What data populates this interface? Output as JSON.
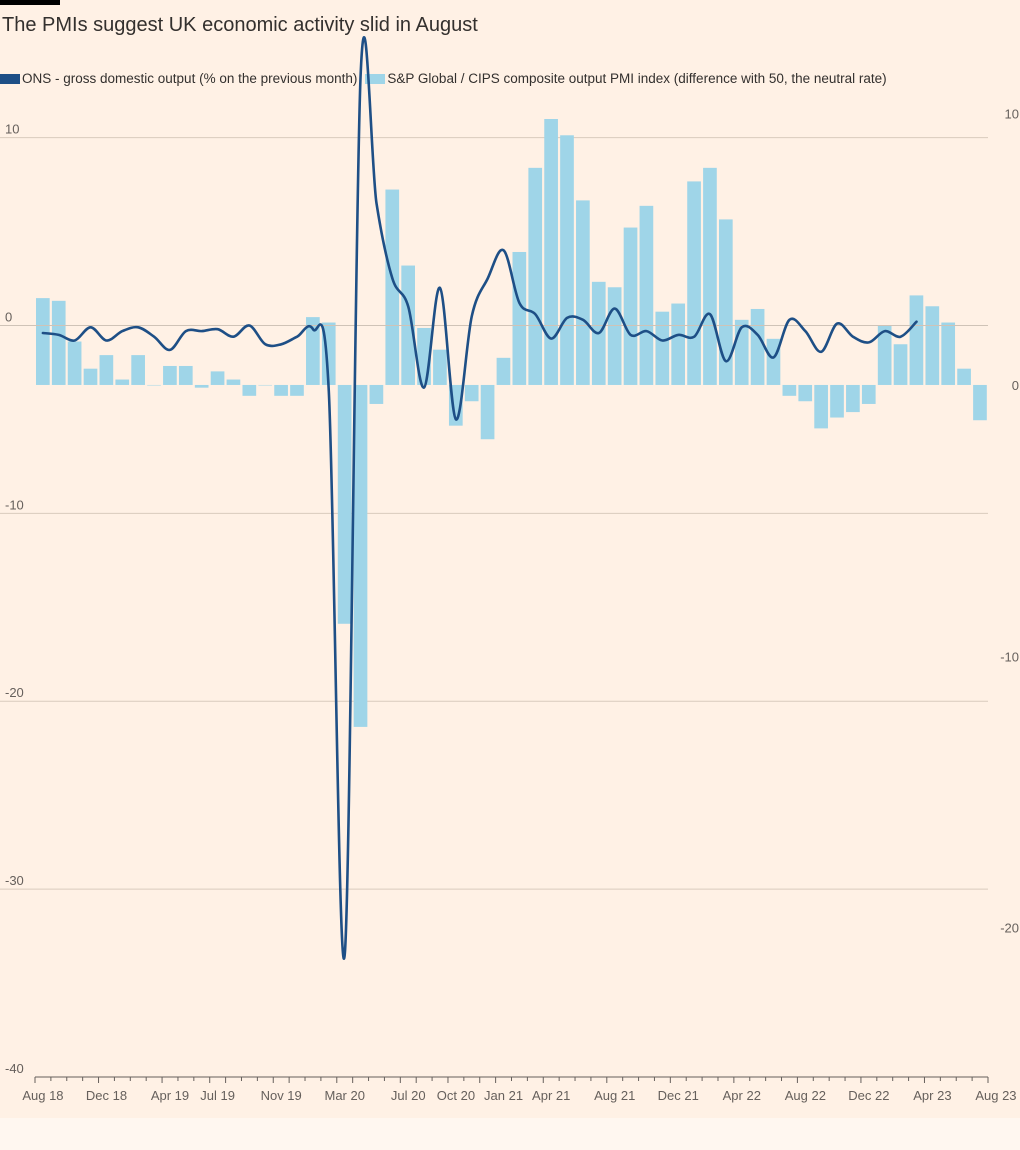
{
  "title": "The PMIs suggest UK economic activity slid in August",
  "legend": [
    {
      "label": "ONS - gross domestic output (% on the previous month)",
      "color": "#1E4F86"
    },
    {
      "label": "S&P Global / CIPS composite output PMI index (difference with 50, the neutral rate)",
      "color": "#9FD5E8"
    }
  ],
  "chart_data": {
    "type": "bar+line",
    "x_tick_labels": [
      "Aug 18",
      "Dec 18",
      "Apr 19",
      "Jul 19",
      "Nov 19",
      "Mar 20",
      "Jul 20",
      "Oct 20",
      "Jan 21",
      "Apr 21",
      "Aug 21",
      "Dec 21",
      "Apr 22",
      "Aug 22",
      "Dec 22",
      "Apr 23",
      "Aug 23"
    ],
    "x_tick_label_months": [
      0,
      4,
      8,
      11,
      15,
      19,
      23,
      26,
      29,
      32,
      36,
      40,
      44,
      48,
      52,
      56,
      60
    ],
    "left_axis": {
      "ticks": [
        10,
        0,
        -10,
        -20,
        -30,
        -40
      ],
      "range": [
        -40,
        12
      ]
    },
    "right_axis": {
      "ticks": [
        10,
        0,
        -10,
        -20
      ],
      "range": [
        -25.5,
        10.5
      ]
    },
    "grid": true,
    "series": [
      {
        "name": "ONS - gross domestic output (% on the previous month)",
        "axis": "left",
        "type": "line",
        "start_month": 0,
        "values": [
          -0.4,
          -0.5,
          -0.8,
          -0.1,
          -0.8,
          -0.3,
          -0.1,
          -0.6,
          -1.3,
          -0.3,
          -0.3,
          -0.2,
          -0.6,
          0.0,
          -1.0,
          -1.0,
          -0.6,
          -0.2,
          -3.5,
          -33.5,
          13.3,
          6.5,
          2.5,
          1.0,
          -3.3,
          2.0,
          -5.0,
          0.5,
          2.5,
          4.0,
          1.2,
          0.6,
          -0.7,
          0.4,
          0.3,
          -0.4,
          0.9,
          -0.5,
          -0.3,
          -0.8,
          -0.5,
          -0.6,
          0.6,
          -1.9,
          -0.1,
          -0.5,
          -1.7,
          0.3,
          -0.3,
          -1.4,
          0.1,
          -0.6,
          -0.9,
          -0.3,
          -0.6,
          0.2
        ]
      },
      {
        "name": "S&P Global / CIPS composite output PMI index (difference with 50, the neutral rate)",
        "axis": "right",
        "type": "bar",
        "start_month": 0,
        "values": [
          3.2,
          3.1,
          1.6,
          0.6,
          1.1,
          0.2,
          1.1,
          0.0,
          0.7,
          0.7,
          -0.1,
          0.5,
          0.2,
          -0.4,
          0.0,
          -0.4,
          -0.4,
          2.5,
          2.3,
          -8.8,
          -12.6,
          -0.7,
          7.2,
          4.4,
          2.1,
          1.3,
          -1.5,
          -0.6,
          -2.0,
          1.0,
          4.9,
          8.0,
          9.8,
          9.2,
          6.8,
          3.8,
          3.6,
          5.8,
          6.6,
          2.7,
          3.0,
          7.5,
          8.0,
          6.1,
          2.4,
          2.8,
          1.7,
          -0.4,
          -0.6,
          -1.6,
          -1.2,
          -1.0,
          -0.7,
          2.2,
          1.5,
          3.3,
          2.9,
          2.3,
          0.6,
          -1.3
        ]
      }
    ]
  }
}
